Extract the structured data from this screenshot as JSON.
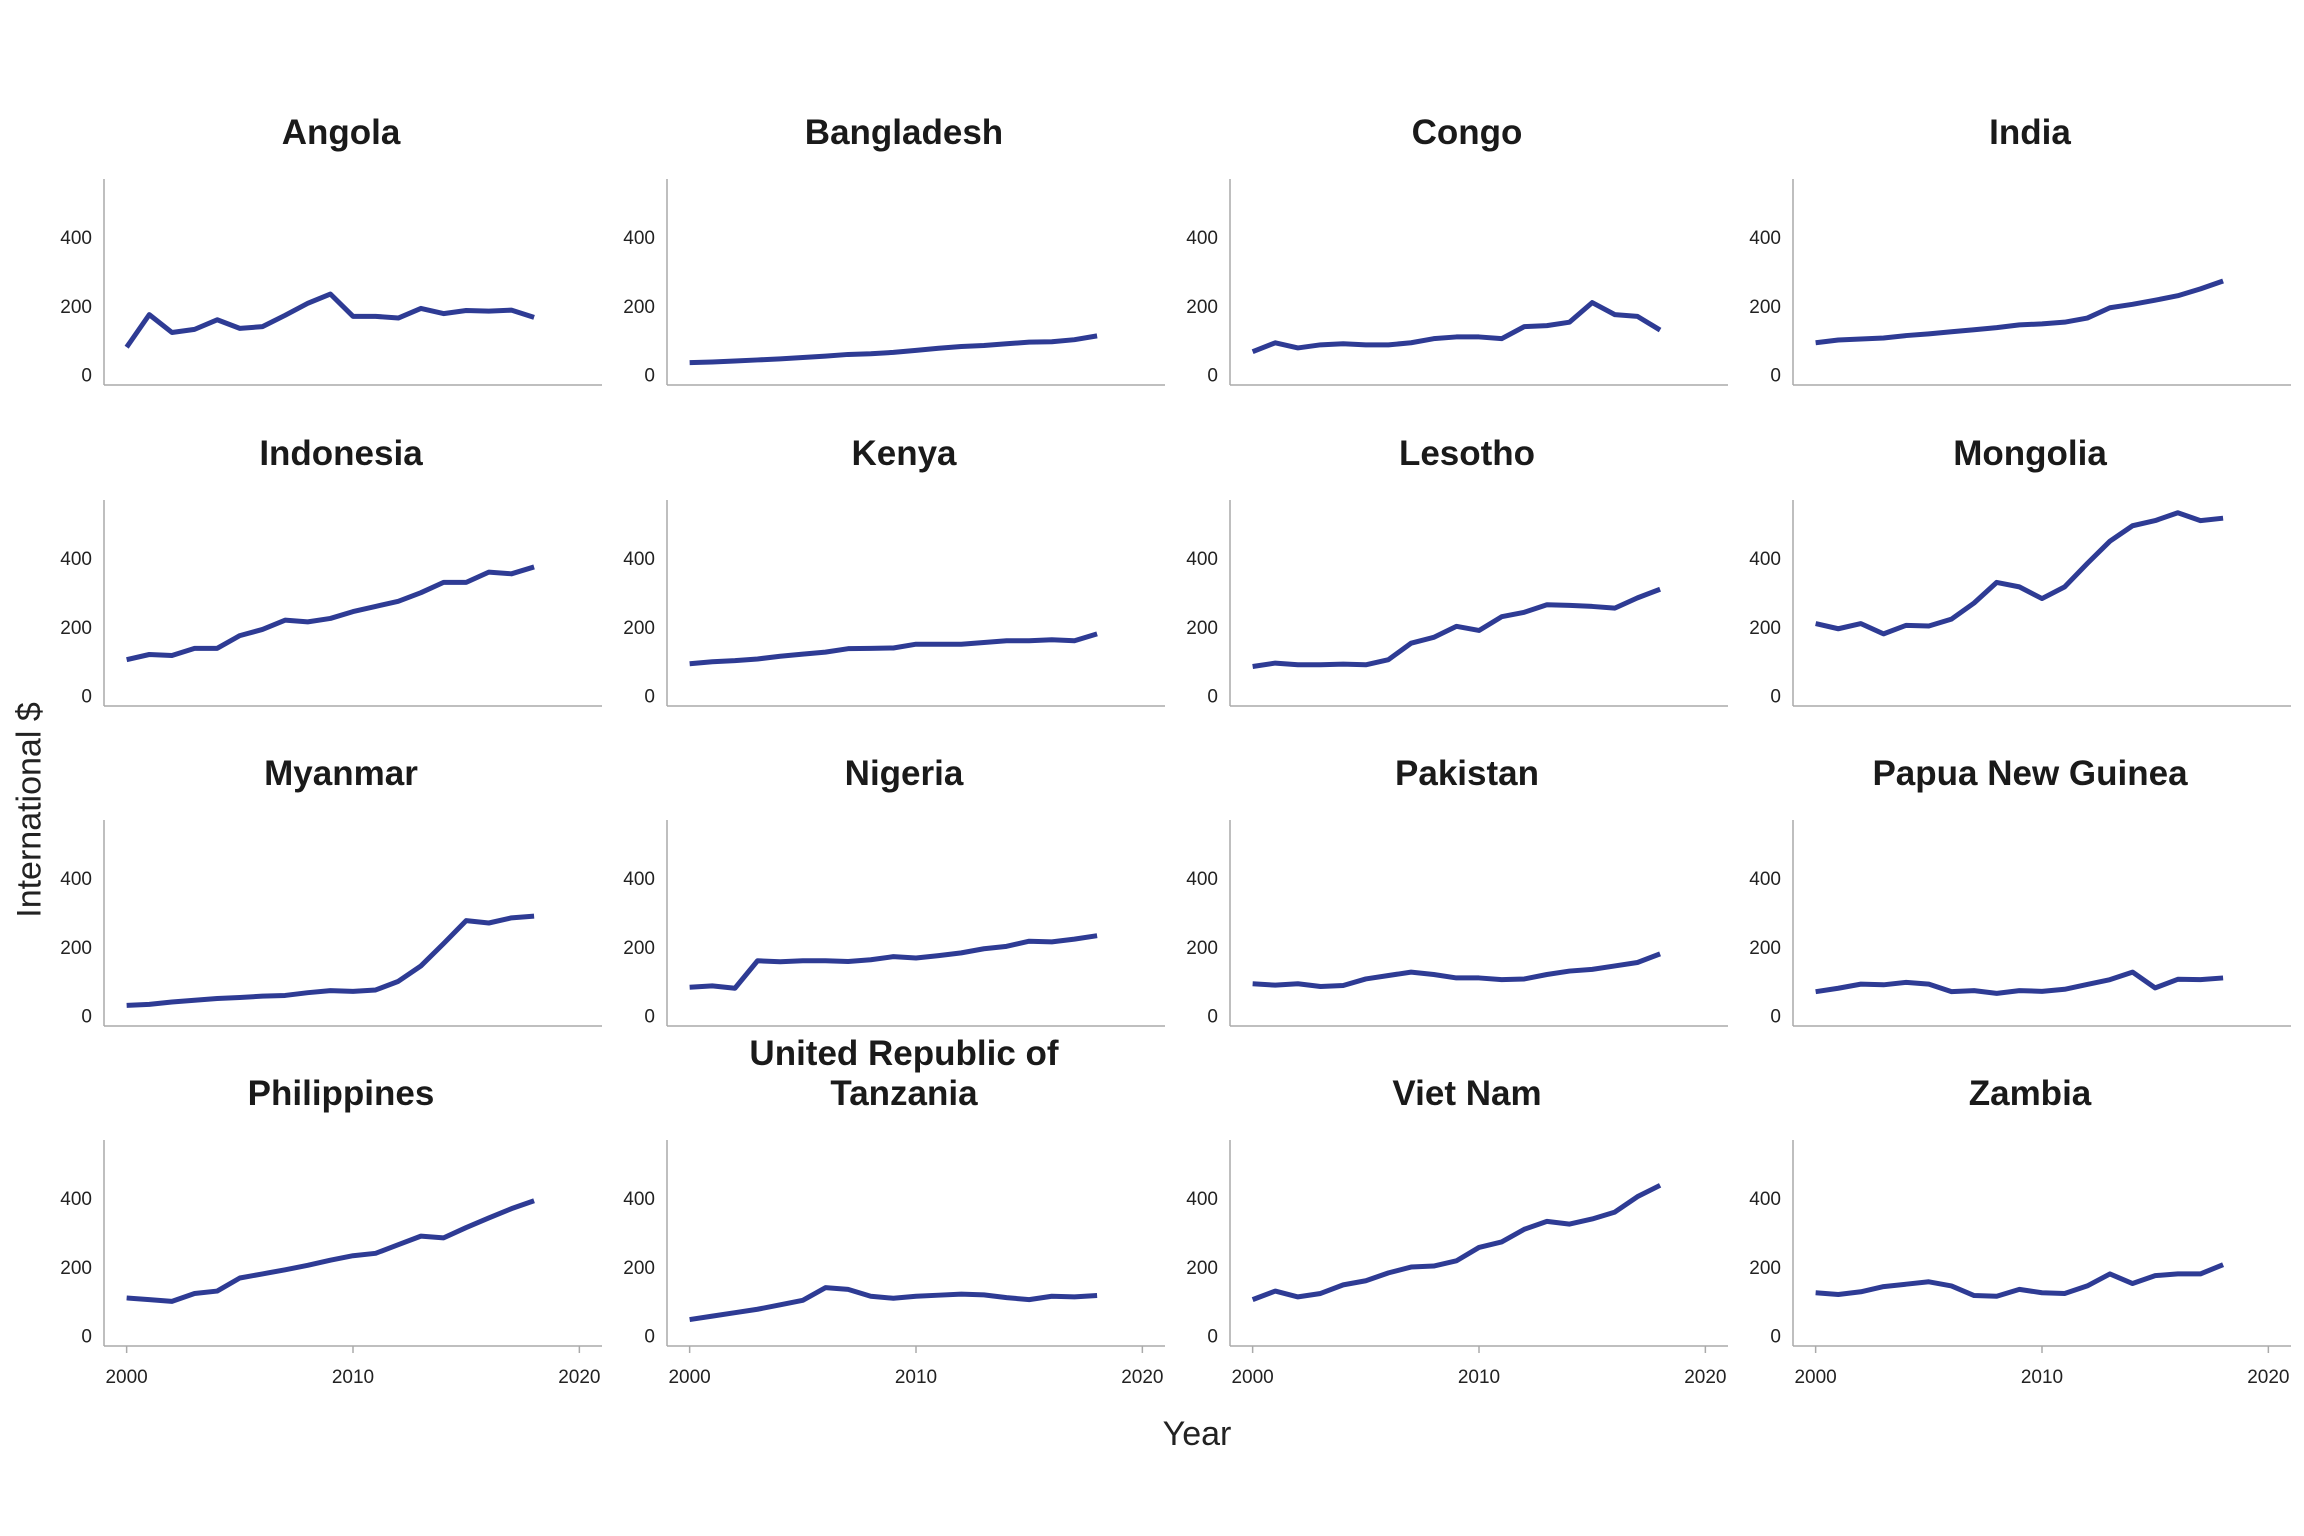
{
  "axis_labels": {
    "x": "Year",
    "y": "International $"
  },
  "chart_data": [
    {
      "type": "line",
      "title": "Angola",
      "x": [
        2000,
        2001,
        2002,
        2003,
        2004,
        2005,
        2006,
        2007,
        2008,
        2009,
        2010,
        2011,
        2012,
        2013,
        2014,
        2015,
        2016,
        2017,
        2018
      ],
      "values": [
        85,
        180,
        128,
        137,
        165,
        140,
        145,
        178,
        213,
        240,
        175,
        175,
        170,
        198,
        183,
        192,
        190,
        193,
        172
      ],
      "color": "#2e3b94",
      "xlim": [
        1999,
        2021
      ],
      "ylim": [
        -25,
        575
      ],
      "yticks": [
        0,
        200,
        400
      ]
    },
    {
      "type": "line",
      "title": "Bangladesh",
      "x": [
        2000,
        2001,
        2002,
        2003,
        2004,
        2005,
        2006,
        2007,
        2008,
        2009,
        2010,
        2011,
        2012,
        2013,
        2014,
        2015,
        2016,
        2017,
        2018
      ],
      "values": [
        40,
        42,
        45,
        48,
        51,
        55,
        59,
        64,
        66,
        70,
        76,
        82,
        87,
        90,
        95,
        100,
        101,
        107,
        118
      ],
      "color": "#2e3b94",
      "xlim": [
        1999,
        2021
      ],
      "ylim": [
        -25,
        575
      ],
      "yticks": [
        0,
        200,
        400
      ]
    },
    {
      "type": "line",
      "title": "Congo",
      "x": [
        2000,
        2001,
        2002,
        2003,
        2004,
        2005,
        2006,
        2007,
        2008,
        2009,
        2010,
        2011,
        2012,
        2013,
        2014,
        2015,
        2016,
        2017,
        2018
      ],
      "values": [
        72,
        98,
        83,
        92,
        95,
        92,
        92,
        98,
        110,
        115,
        115,
        110,
        145,
        148,
        158,
        215,
        180,
        175,
        135
      ],
      "color": "#2e3b94",
      "xlim": [
        1999,
        2021
      ],
      "ylim": [
        -25,
        575
      ],
      "yticks": [
        0,
        200,
        400
      ]
    },
    {
      "type": "line",
      "title": "India",
      "x": [
        2000,
        2001,
        2002,
        2003,
        2004,
        2005,
        2006,
        2007,
        2008,
        2009,
        2010,
        2011,
        2012,
        2013,
        2014,
        2015,
        2016,
        2017,
        2018
      ],
      "values": [
        98,
        106,
        109,
        112,
        119,
        124,
        130,
        136,
        142,
        150,
        153,
        158,
        170,
        200,
        210,
        222,
        235,
        255,
        278
      ],
      "color": "#2e3b94",
      "xlim": [
        1999,
        2021
      ],
      "ylim": [
        -25,
        575
      ],
      "yticks": [
        0,
        200,
        400
      ]
    },
    {
      "type": "line",
      "title": "Indonesia",
      "x": [
        2000,
        2001,
        2002,
        2003,
        2004,
        2005,
        2006,
        2007,
        2008,
        2009,
        2010,
        2011,
        2012,
        2013,
        2014,
        2015,
        2016,
        2017,
        2018
      ],
      "values": [
        110,
        125,
        122,
        143,
        143,
        180,
        198,
        225,
        220,
        230,
        250,
        265,
        280,
        305,
        335,
        335,
        365,
        360,
        380
      ],
      "color": "#2e3b94",
      "xlim": [
        1999,
        2021
      ],
      "ylim": [
        -25,
        575
      ],
      "yticks": [
        0,
        200,
        400
      ]
    },
    {
      "type": "line",
      "title": "Kenya",
      "x": [
        2000,
        2001,
        2002,
        2003,
        2004,
        2005,
        2006,
        2007,
        2008,
        2009,
        2010,
        2011,
        2012,
        2013,
        2014,
        2015,
        2016,
        2017,
        2018
      ],
      "values": [
        98,
        104,
        107,
        112,
        120,
        126,
        132,
        142,
        143,
        144,
        155,
        155,
        155,
        160,
        165,
        165,
        168,
        165,
        185
      ],
      "color": "#2e3b94",
      "xlim": [
        1999,
        2021
      ],
      "ylim": [
        -25,
        575
      ],
      "yticks": [
        0,
        200,
        400
      ]
    },
    {
      "type": "line",
      "title": "Lesotho",
      "x": [
        2000,
        2001,
        2002,
        2003,
        2004,
        2005,
        2006,
        2007,
        2008,
        2009,
        2010,
        2011,
        2012,
        2013,
        2014,
        2015,
        2016,
        2017,
        2018
      ],
      "values": [
        90,
        100,
        95,
        95,
        97,
        95,
        110,
        158,
        175,
        207,
        195,
        235,
        248,
        270,
        268,
        265,
        260,
        290,
        315
      ],
      "color": "#2e3b94",
      "xlim": [
        1999,
        2021
      ],
      "ylim": [
        -25,
        575
      ],
      "yticks": [
        0,
        200,
        400
      ]
    },
    {
      "type": "line",
      "title": "Mongolia",
      "x": [
        2000,
        2001,
        2002,
        2003,
        2004,
        2005,
        2006,
        2007,
        2008,
        2009,
        2010,
        2011,
        2012,
        2013,
        2014,
        2015,
        2016,
        2017,
        2018
      ],
      "values": [
        215,
        200,
        215,
        185,
        210,
        208,
        228,
        275,
        335,
        322,
        288,
        322,
        390,
        455,
        500,
        515,
        538,
        515,
        522
      ],
      "color": "#2e3b94",
      "xlim": [
        1999,
        2021
      ],
      "ylim": [
        -25,
        575
      ],
      "yticks": [
        0,
        200,
        400
      ]
    },
    {
      "type": "line",
      "title": "Myanmar",
      "x": [
        2000,
        2001,
        2002,
        2003,
        2004,
        2005,
        2006,
        2007,
        2008,
        2009,
        2010,
        2011,
        2012,
        2013,
        2014,
        2015,
        2016,
        2017,
        2018
      ],
      "values": [
        35,
        38,
        45,
        50,
        55,
        58,
        62,
        64,
        72,
        78,
        76,
        80,
        105,
        150,
        215,
        282,
        275,
        290,
        295
      ],
      "color": "#2e3b94",
      "xlim": [
        1999,
        2021
      ],
      "ylim": [
        -25,
        575
      ],
      "yticks": [
        0,
        200,
        400
      ]
    },
    {
      "type": "line",
      "title": "Nigeria",
      "x": [
        2000,
        2001,
        2002,
        2003,
        2004,
        2005,
        2006,
        2007,
        2008,
        2009,
        2010,
        2011,
        2012,
        2013,
        2014,
        2015,
        2016,
        2017,
        2018
      ],
      "values": [
        88,
        92,
        85,
        165,
        162,
        165,
        165,
        163,
        168,
        177,
        173,
        180,
        188,
        200,
        207,
        222,
        220,
        228,
        238
      ],
      "color": "#2e3b94",
      "xlim": [
        1999,
        2021
      ],
      "ylim": [
        -25,
        575
      ],
      "yticks": [
        0,
        200,
        400
      ]
    },
    {
      "type": "line",
      "title": "Pakistan",
      "x": [
        2000,
        2001,
        2002,
        2003,
        2004,
        2005,
        2006,
        2007,
        2008,
        2009,
        2010,
        2011,
        2012,
        2013,
        2014,
        2015,
        2016,
        2017,
        2018
      ],
      "values": [
        98,
        94,
        98,
        90,
        93,
        112,
        122,
        132,
        125,
        115,
        115,
        110,
        112,
        125,
        135,
        140,
        150,
        160,
        185
      ],
      "color": "#2e3b94",
      "xlim": [
        1999,
        2021
      ],
      "ylim": [
        -25,
        575
      ],
      "yticks": [
        0,
        200,
        400
      ]
    },
    {
      "type": "line",
      "title": "Papua New Guinea",
      "x": [
        2000,
        2001,
        2002,
        2003,
        2004,
        2005,
        2006,
        2007,
        2008,
        2009,
        2010,
        2011,
        2012,
        2013,
        2014,
        2015,
        2016,
        2017,
        2018
      ],
      "values": [
        75,
        85,
        97,
        95,
        102,
        97,
        75,
        78,
        70,
        78,
        76,
        82,
        96,
        110,
        132,
        86,
        111,
        110,
        115
      ],
      "color": "#2e3b94",
      "xlim": [
        1999,
        2021
      ],
      "ylim": [
        -25,
        575
      ],
      "yticks": [
        0,
        200,
        400
      ]
    },
    {
      "type": "line",
      "title": "Philippines",
      "x": [
        2000,
        2001,
        2002,
        2003,
        2004,
        2005,
        2006,
        2007,
        2008,
        2009,
        2010,
        2011,
        2012,
        2013,
        2014,
        2015,
        2016,
        2017,
        2018
      ],
      "values": [
        115,
        110,
        105,
        128,
        135,
        173,
        185,
        197,
        210,
        225,
        238,
        245,
        270,
        295,
        290,
        320,
        348,
        375,
        398
      ],
      "color": "#2e3b94",
      "xlim": [
        1999,
        2021
      ],
      "ylim": [
        -25,
        575
      ],
      "yticks": [
        0,
        200,
        400
      ],
      "xticks": [
        2000,
        2010,
        2020
      ]
    },
    {
      "type": "line",
      "title": "United Republic of Tanzania",
      "x": [
        2000,
        2001,
        2002,
        2003,
        2004,
        2005,
        2006,
        2007,
        2008,
        2009,
        2010,
        2011,
        2012,
        2013,
        2014,
        2015,
        2016,
        2017,
        2018
      ],
      "values": [
        52,
        62,
        72,
        82,
        95,
        108,
        145,
        140,
        120,
        114,
        120,
        123,
        126,
        124,
        116,
        110,
        120,
        118,
        122
      ],
      "color": "#2e3b94",
      "xlim": [
        1999,
        2021
      ],
      "ylim": [
        -25,
        575
      ],
      "yticks": [
        0,
        200,
        400
      ],
      "xticks": [
        2000,
        2010,
        2020
      ]
    },
    {
      "type": "line",
      "title": "Viet Nam",
      "x": [
        2000,
        2001,
        2002,
        2003,
        2004,
        2005,
        2006,
        2007,
        2008,
        2009,
        2010,
        2011,
        2012,
        2013,
        2014,
        2015,
        2016,
        2017,
        2018
      ],
      "values": [
        110,
        135,
        118,
        128,
        153,
        165,
        188,
        205,
        208,
        223,
        262,
        278,
        315,
        338,
        330,
        345,
        365,
        410,
        443
      ],
      "color": "#2e3b94",
      "xlim": [
        1999,
        2021
      ],
      "ylim": [
        -25,
        575
      ],
      "yticks": [
        0,
        200,
        400
      ],
      "xticks": [
        2000,
        2010,
        2020
      ]
    },
    {
      "type": "line",
      "title": "Zambia",
      "x": [
        2000,
        2001,
        2002,
        2003,
        2004,
        2005,
        2006,
        2007,
        2008,
        2009,
        2010,
        2011,
        2012,
        2013,
        2014,
        2015,
        2016,
        2017,
        2018
      ],
      "values": [
        130,
        125,
        133,
        148,
        155,
        162,
        150,
        122,
        120,
        140,
        130,
        128,
        150,
        185,
        157,
        180,
        185,
        185,
        212
      ],
      "color": "#2e3b94",
      "xlim": [
        1999,
        2021
      ],
      "ylim": [
        -25,
        575
      ],
      "yticks": [
        0,
        200,
        400
      ],
      "xticks": [
        2000,
        2010,
        2020
      ]
    }
  ]
}
